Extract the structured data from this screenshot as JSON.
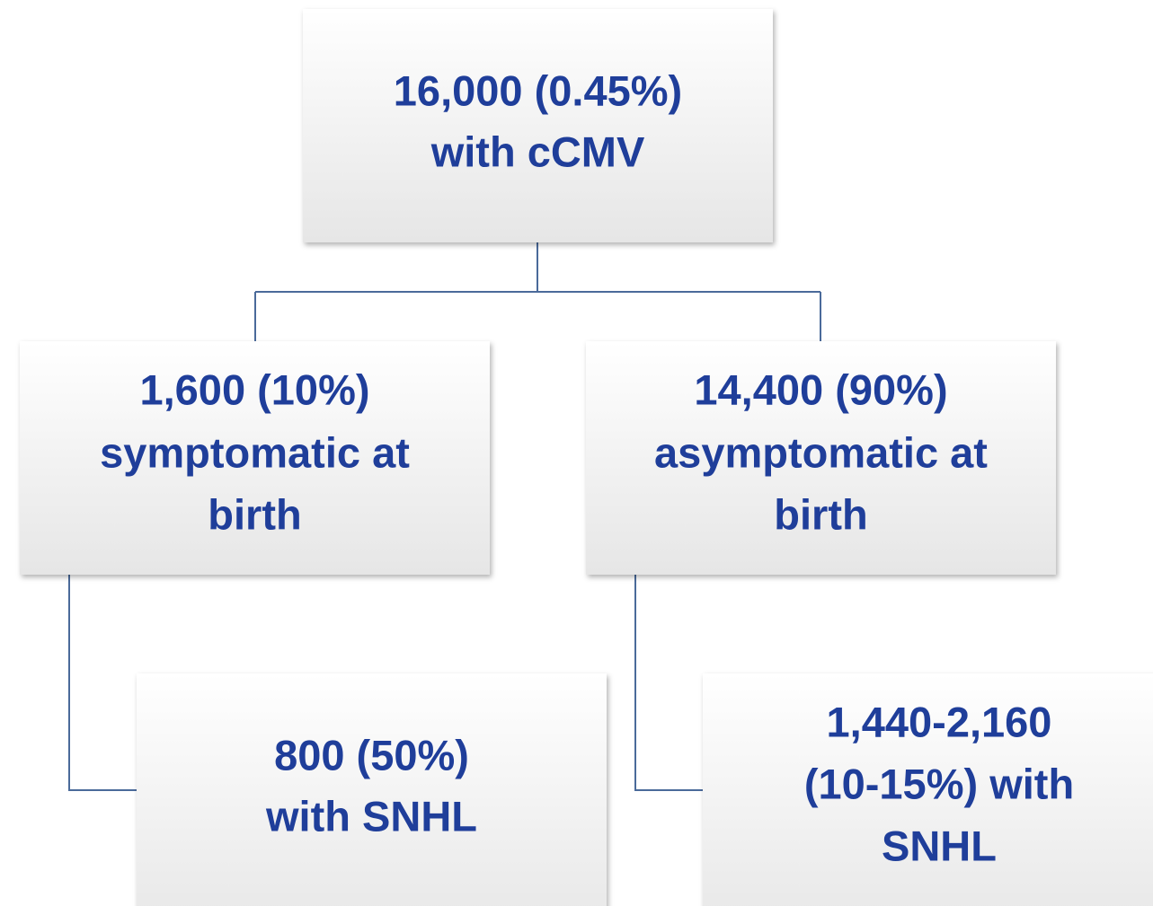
{
  "nodes": [
    {
      "lines": [
        "16,000 (0.45%)",
        "with cCMV"
      ]
    },
    {
      "lines": [
        "1,600 (10%)",
        "symptomatic at",
        "birth"
      ]
    },
    {
      "lines": [
        "14,400 (90%)",
        "asymptomatic at",
        "birth"
      ]
    },
    {
      "lines": [
        "800 (50%)",
        "with SNHL"
      ]
    },
    {
      "lines": [
        "1,440-2,160",
        "(10-15%) with",
        "SNHL"
      ]
    }
  ]
}
